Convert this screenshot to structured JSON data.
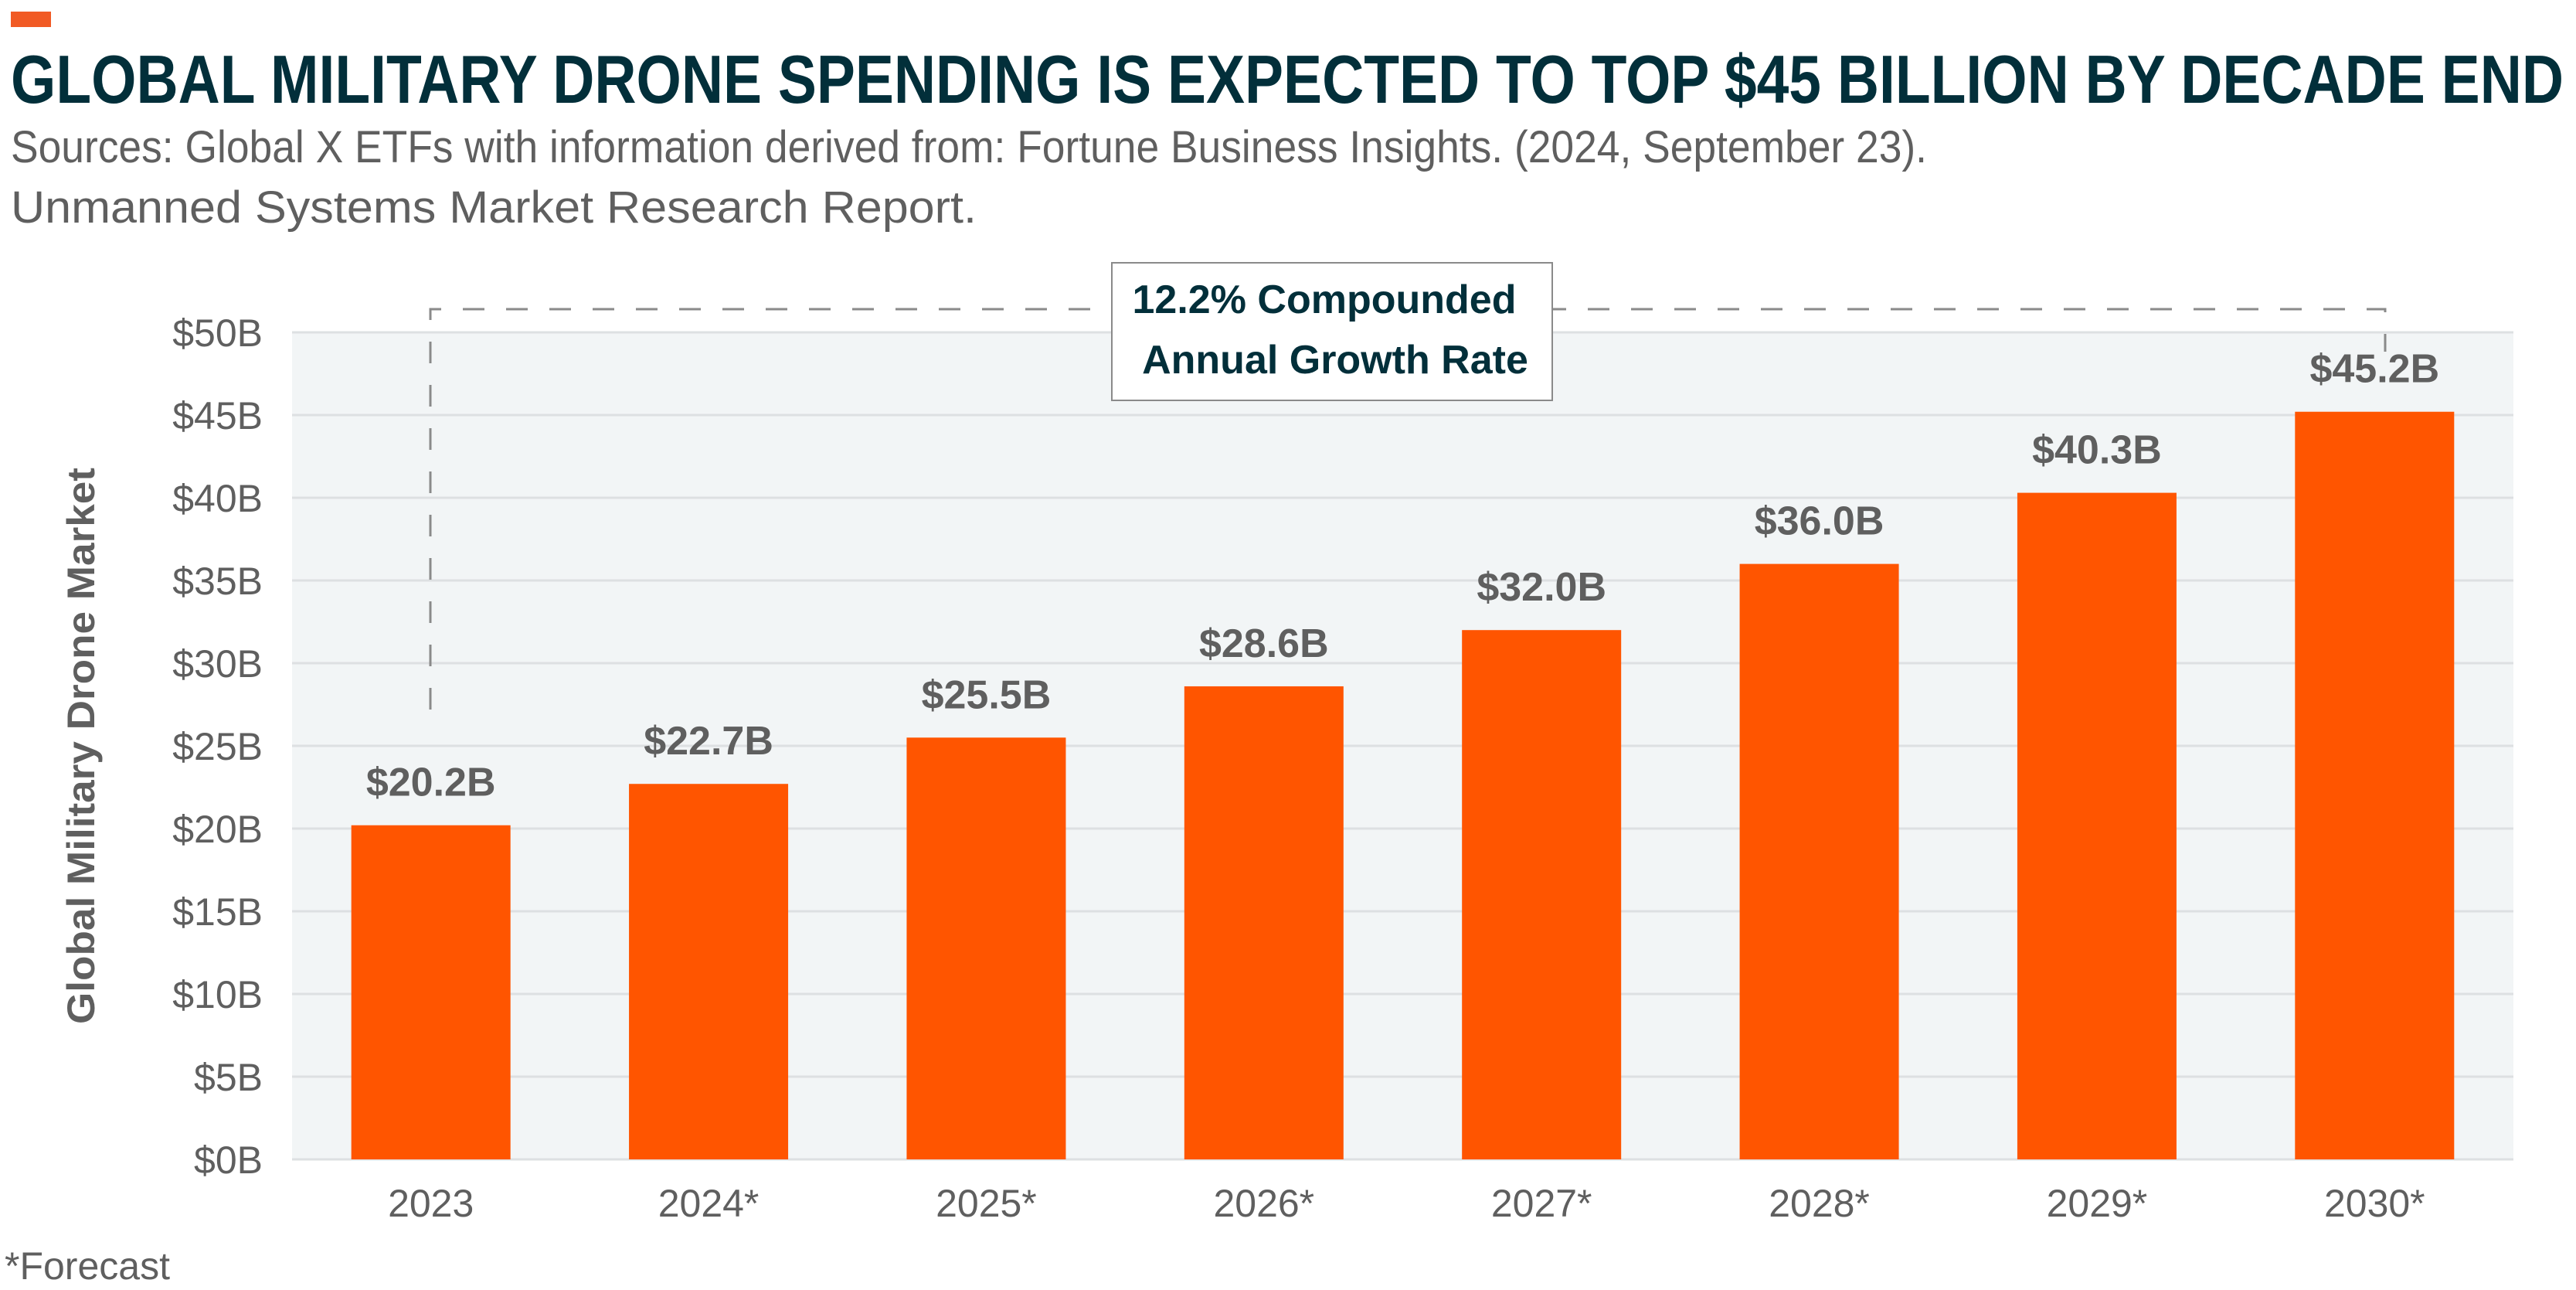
{
  "header": {
    "title": "GLOBAL MILITARY DRONE SPENDING IS EXPECTED TO TOP $45 BILLION BY DECADE END",
    "subtitle_line1": "Sources: Global X ETFs with information derived from: Fortune Business Insights. (2024, September 23).",
    "subtitle_line2": "Unmanned Systems Market Research Report.",
    "accent_color": "#F15A24"
  },
  "footnote": "*Forecast",
  "annotation": {
    "line1": "12.2% Compounded",
    "line2": "Annual Growth Rate"
  },
  "colors": {
    "bar": "#FF5500",
    "title": "#022F3A",
    "text": "#5F5F5F",
    "plot_bg": "#F2F5F6",
    "grid": "#DDE0E2"
  },
  "chart_data": {
    "type": "bar",
    "title": "GLOBAL MILITARY DRONE SPENDING IS EXPECTED TO TOP $45 BILLION BY DECADE END",
    "xlabel": "",
    "ylabel": "Global Military Drone Market",
    "categories": [
      "2023",
      "2024*",
      "2025*",
      "2026*",
      "2027*",
      "2028*",
      "2029*",
      "2030*"
    ],
    "values": [
      20.2,
      22.7,
      25.5,
      28.6,
      32.0,
      36.0,
      40.3,
      45.2
    ],
    "data_labels": [
      "$20.2B",
      "$22.7B",
      "$25.5B",
      "$28.6B",
      "$32.0B",
      "$36.0B",
      "$40.3B",
      "$45.2B"
    ],
    "ylim": [
      0,
      50
    ],
    "yticks": [
      0,
      5,
      10,
      15,
      20,
      25,
      30,
      35,
      40,
      45,
      50
    ],
    "ytick_labels": [
      "$0B",
      "$5B",
      "$10B",
      "$15B",
      "$20B",
      "$25B",
      "$30B",
      "$35B",
      "$40B",
      "$45B",
      "$50B"
    ],
    "grid": true,
    "legend": "none"
  }
}
